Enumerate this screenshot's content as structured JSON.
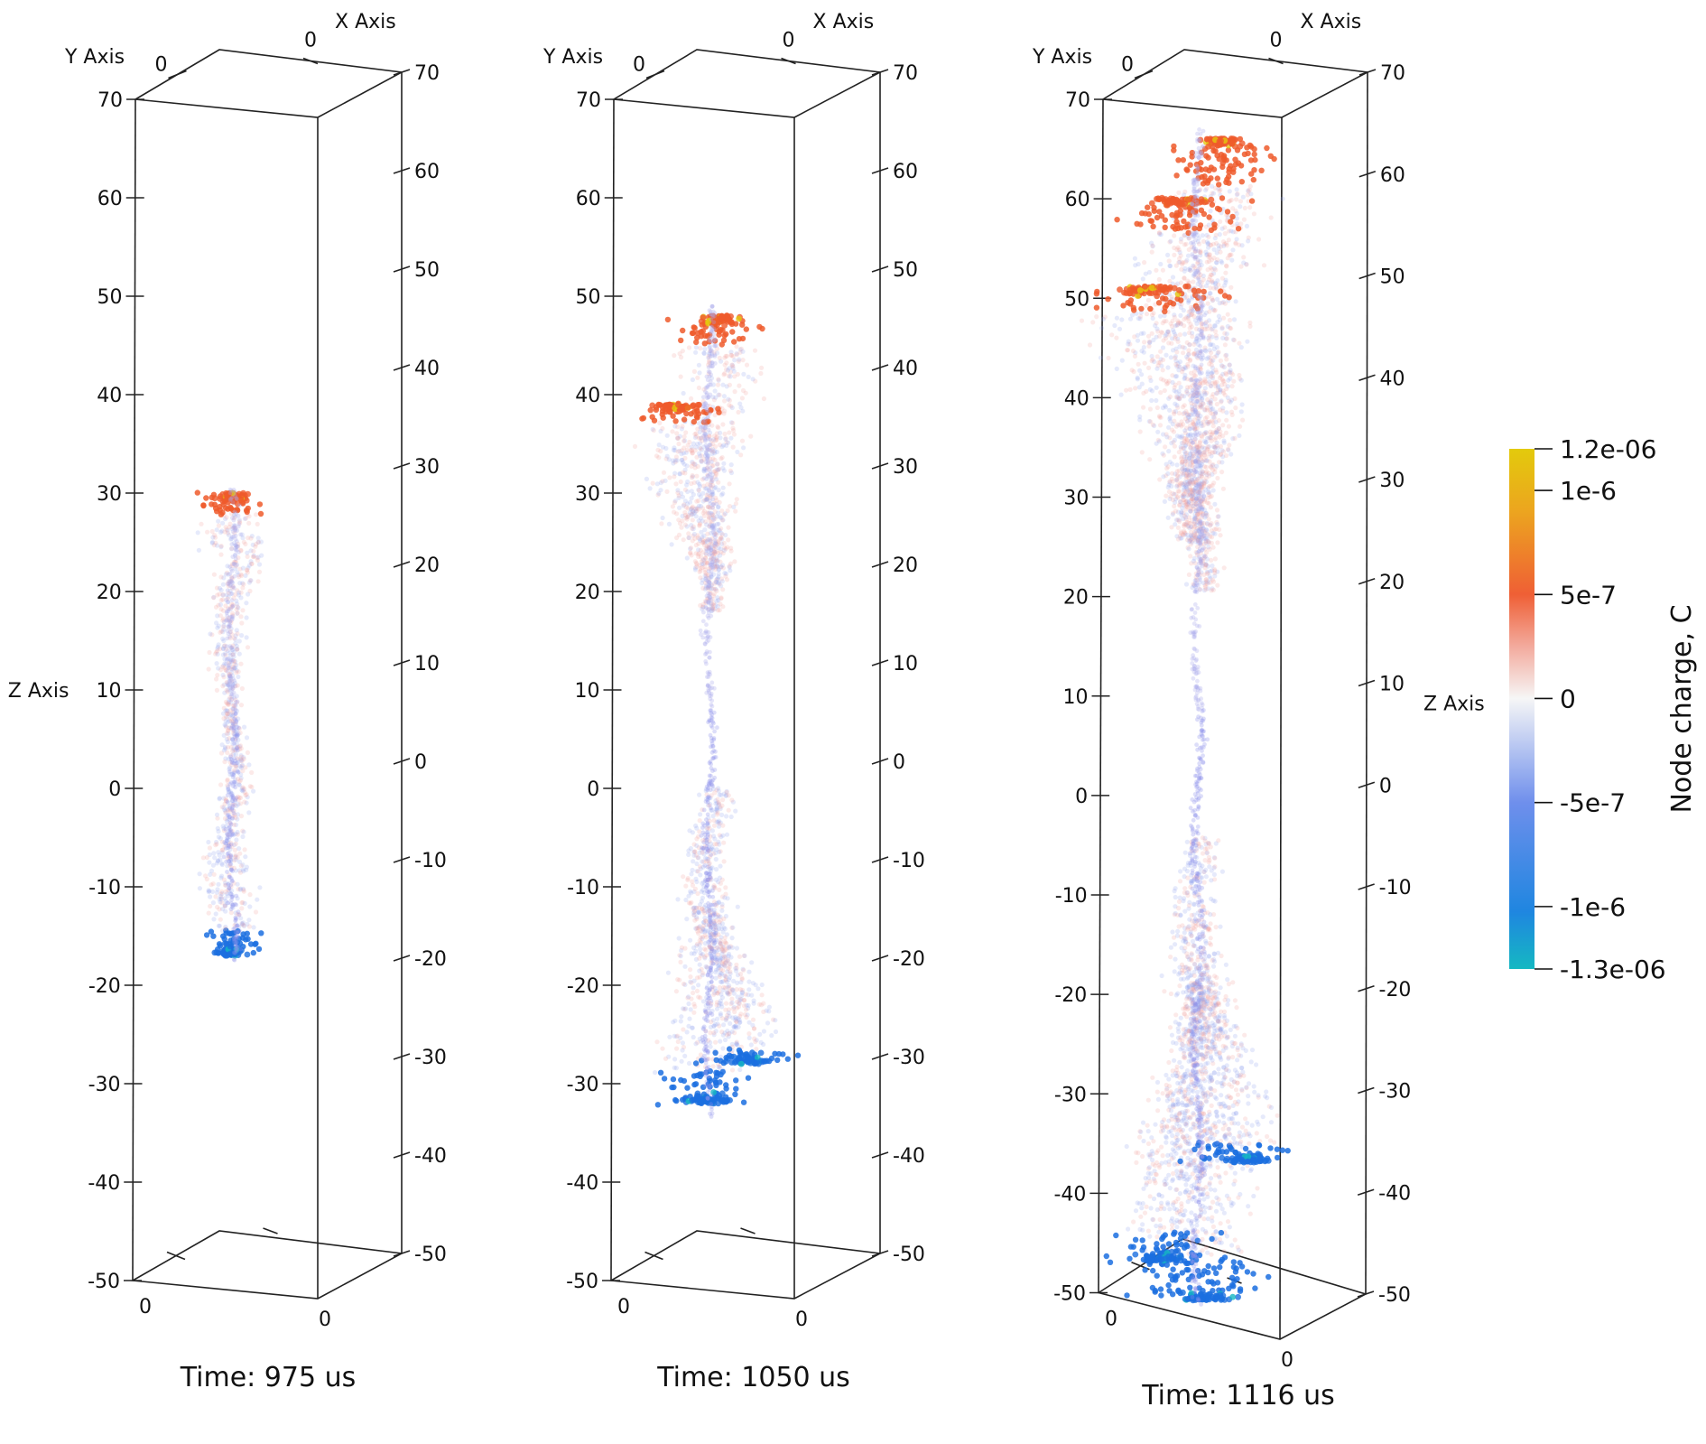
{
  "axis_names": {
    "x": "X Axis",
    "y": "Y Axis",
    "z": "Z Axis"
  },
  "colors": {
    "negative_strong": "#1b6fe0",
    "negative_light": "#8ea0ee",
    "neutral": "#f4f4f4",
    "positive_light": "#f0a09a",
    "positive_strong": "#ef5a2c",
    "max": "#e3c80e",
    "min": "#15b8c2"
  },
  "chart_data": [
    {
      "type": "scatter",
      "caption": "Time: 975 us",
      "zlim": [
        -50,
        70
      ],
      "z_ticks": [
        "70",
        "60",
        "50",
        "40",
        "30",
        "20",
        "10",
        "0",
        "-10",
        "-20",
        "-30",
        "-40",
        "-50"
      ],
      "x_tick_label": "0",
      "y_tick_label": "0",
      "positive_top_z": 30.5,
      "negative_bottom_z": -17.5,
      "branches": [
        {
          "from_z": 8,
          "to_z": 30,
          "spread": 4,
          "sign": "positive"
        },
        {
          "from_z": -17,
          "to_z": 8,
          "spread": 3.5,
          "sign": "negative"
        }
      ]
    },
    {
      "type": "scatter",
      "caption": "Time:  1050 us",
      "zlim": [
        -50,
        70
      ],
      "z_ticks": [
        "70",
        "60",
        "50",
        "40",
        "30",
        "20",
        "10",
        "0",
        "-10",
        "-20",
        "-30",
        "-40",
        "-50"
      ],
      "x_tick_label": "0",
      "y_tick_label": "0",
      "positive_top_z": 49,
      "negative_bottom_z": -33.5,
      "branches": [
        {
          "from_z": 18,
          "to_z": 48,
          "spread": 5,
          "sign": "positive"
        },
        {
          "from_z": 20,
          "to_z": 39,
          "spread": 6,
          "sign": "positive"
        },
        {
          "from_z": -32,
          "to_z": 0,
          "spread": 6,
          "sign": "negative"
        },
        {
          "from_z": -28,
          "to_z": -12,
          "spread": 5,
          "sign": "negative"
        }
      ]
    },
    {
      "type": "scatter",
      "caption": "Time: 1116 us",
      "zlim": [
        -50,
        70
      ],
      "z_ticks": [
        "70",
        "60",
        "50",
        "40",
        "30",
        "20",
        "10",
        "0",
        "-10",
        "-20",
        "-30",
        "-40",
        "-50"
      ],
      "x_tick_label": "0",
      "y_tick_label": "0",
      "positive_top_z": 67,
      "negative_bottom_z": -53,
      "branches": [
        {
          "from_z": 20,
          "to_z": 66,
          "spread": 6,
          "sign": "positive"
        },
        {
          "from_z": 25,
          "to_z": 60,
          "spread": 7,
          "sign": "positive"
        },
        {
          "from_z": 25,
          "to_z": 51,
          "spread": 8,
          "sign": "positive"
        },
        {
          "from_z": -52,
          "to_z": -5,
          "spread": 7,
          "sign": "negative"
        },
        {
          "from_z": -48,
          "to_z": -20,
          "spread": 6,
          "sign": "negative"
        },
        {
          "from_z": -38,
          "to_z": -18,
          "spread": 6,
          "sign": "negative"
        }
      ]
    }
  ],
  "colorbar": {
    "title": "Node charge, C",
    "range": [
      -1.3e-06,
      1.2e-06
    ],
    "ticks": [
      {
        "value": 1.2e-06,
        "label": "1.2e-06"
      },
      {
        "value": 1e-06,
        "label": "1e-6"
      },
      {
        "value": 5e-07,
        "label": "5e-7"
      },
      {
        "value": 0,
        "label": "0"
      },
      {
        "value": -5e-07,
        "label": "-5e-7"
      },
      {
        "value": -1e-06,
        "label": "-1e-6"
      },
      {
        "value": -1.3e-06,
        "label": "-1.3e-06"
      }
    ]
  }
}
